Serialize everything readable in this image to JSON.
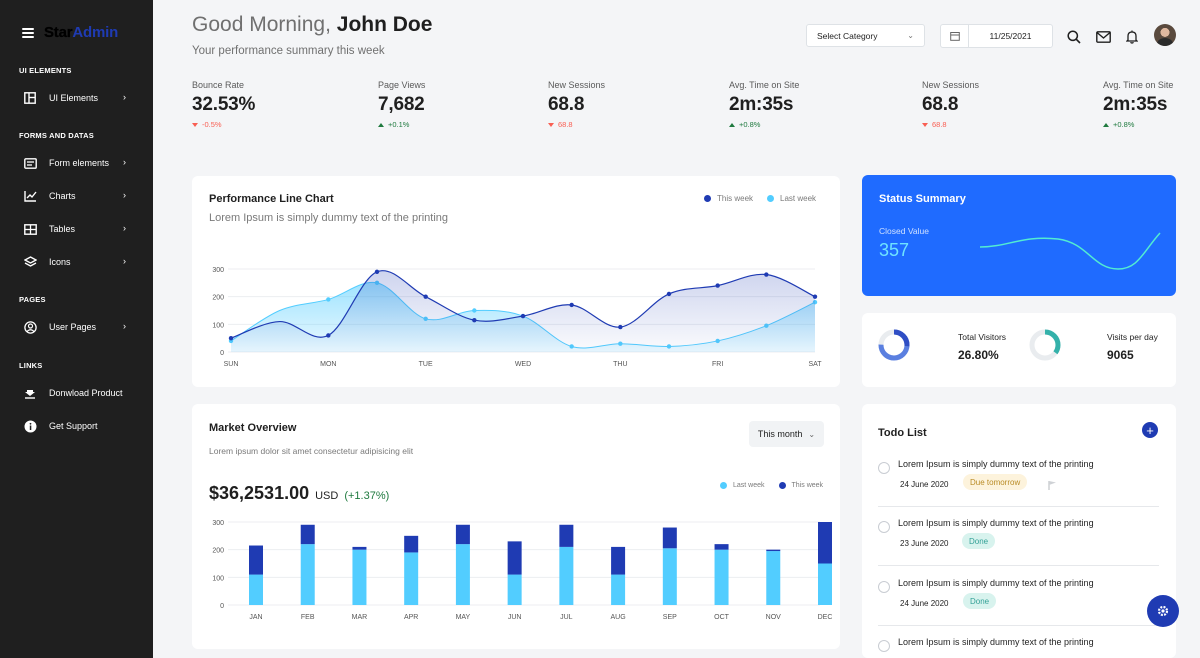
{
  "sidebar": {
    "brand_part1": "Star",
    "brand_part2": "Admin",
    "sections": [
      {
        "label": "UI ELEMENTS"
      },
      {
        "label": "FORMS AND DATAS"
      },
      {
        "label": "PAGES"
      },
      {
        "label": "LINKS"
      }
    ],
    "items": [
      {
        "label": "UI Elements",
        "icon": "layout-icon"
      },
      {
        "label": "Form elements",
        "icon": "form-icon"
      },
      {
        "label": "Charts",
        "icon": "chart-icon"
      },
      {
        "label": "Tables",
        "icon": "table-icon"
      },
      {
        "label": "Icons",
        "icon": "layers-icon"
      },
      {
        "label": "User Pages",
        "icon": "user-circle-icon"
      },
      {
        "label": "Donwload Product",
        "icon": "download-icon"
      },
      {
        "label": "Get Support",
        "icon": "info-icon"
      }
    ]
  },
  "header": {
    "greeting": "Good Morning,",
    "user_name": "John Doe",
    "subtitle": "Your performance summary this week",
    "category_placeholder": "Select Category",
    "date": "11/25/2021"
  },
  "stats": [
    {
      "label": "Bounce Rate",
      "value": "32.53%",
      "change": "-0.5%",
      "direction": "down"
    },
    {
      "label": "Page Views",
      "value": "7,682",
      "change": "+0.1%",
      "direction": "up"
    },
    {
      "label": "New Sessions",
      "value": "68.8",
      "change": "68.8",
      "direction": "down"
    },
    {
      "label": "Avg. Time on Site",
      "value": "2m:35s",
      "change": "+0.8%",
      "direction": "up"
    },
    {
      "label": "New Sessions",
      "value": "68.8",
      "change": "68.8",
      "direction": "down"
    },
    {
      "label": "Avg. Time on Site",
      "value": "2m:35s",
      "change": "+0.8%",
      "direction": "up"
    }
  ],
  "colors": {
    "dark_blue": "#1f3bb3",
    "light_blue": "#52cdff",
    "status_blue": "#1f6bff",
    "sidebar": "#1f1f1f"
  },
  "performance": {
    "title": "Performance Line Chart",
    "subtitle": "Lorem Ipsum is simply dummy text of the printing",
    "legend_this": "This week",
    "legend_last": "Last week"
  },
  "market": {
    "title": "Market Overview",
    "subtitle": "Lorem ipsum dolor sit amet consectetur adipisicing elit",
    "period": "This month",
    "amount": "$36,2531.00",
    "currency": "USD",
    "change": "(+1.37%)",
    "legend_last": "Last week",
    "legend_this": "This week"
  },
  "status": {
    "title": "Status Summary",
    "closed_label": "Closed Value",
    "closed_value": "357"
  },
  "visitors": {
    "total_label": "Total Visitors",
    "total_value": "26.80%",
    "total_fraction": 0.75,
    "perday_label": "Visits per day",
    "perday_value": "9065",
    "perday_fraction": 0.35
  },
  "todo": {
    "title": "Todo List",
    "items": [
      {
        "text": "Lorem Ipsum is simply dummy text of the printing",
        "date": "24 June 2020",
        "badge": "Due tomorrow",
        "status": "due"
      },
      {
        "text": "Lorem Ipsum is simply dummy text of the printing",
        "date": "23 June 2020",
        "badge": "Done",
        "status": "done"
      },
      {
        "text": "Lorem Ipsum is simply dummy text of the printing",
        "date": "24 June 2020",
        "badge": "Done",
        "status": "done"
      },
      {
        "text": "Lorem Ipsum is simply dummy text of the printing",
        "date": "",
        "badge": "",
        "status": ""
      }
    ]
  },
  "chart_data": [
    {
      "type": "line",
      "title": "Performance Line Chart",
      "categories": [
        "SUN",
        "MON",
        "TUE",
        "WED",
        "THU",
        "FRI",
        "SAT"
      ],
      "x": [
        0,
        0.5,
        1,
        1.5,
        2,
        2.5,
        3,
        3.5,
        4,
        4.5,
        5,
        5.5,
        6
      ],
      "ylim": [
        0,
        300
      ],
      "yticks": [
        0,
        100,
        200,
        300
      ],
      "series": [
        {
          "name": "This week",
          "values": [
            50,
            110,
            60,
            290,
            200,
            115,
            130,
            170,
            90,
            210,
            240,
            280,
            200
          ]
        },
        {
          "name": "Last week",
          "values": [
            40,
            150,
            190,
            250,
            120,
            150,
            130,
            20,
            30,
            20,
            40,
            95,
            180
          ]
        }
      ]
    },
    {
      "type": "bar",
      "title": "Market Overview",
      "stacked": true,
      "categories": [
        "JAN",
        "FEB",
        "MAR",
        "APR",
        "MAY",
        "JUN",
        "JUL",
        "AUG",
        "SEP",
        "OCT",
        "NOV",
        "DEC"
      ],
      "ylim": [
        0,
        300
      ],
      "yticks": [
        0,
        100,
        200,
        300
      ],
      "series": [
        {
          "name": "Last week",
          "values": [
            110,
            220,
            200,
            190,
            220,
            110,
            210,
            110,
            205,
            200,
            195,
            150
          ]
        },
        {
          "name": "This week",
          "values": [
            105,
            70,
            10,
            60,
            70,
            120,
            80,
            100,
            75,
            20,
            5,
            150
          ]
        }
      ]
    }
  ]
}
